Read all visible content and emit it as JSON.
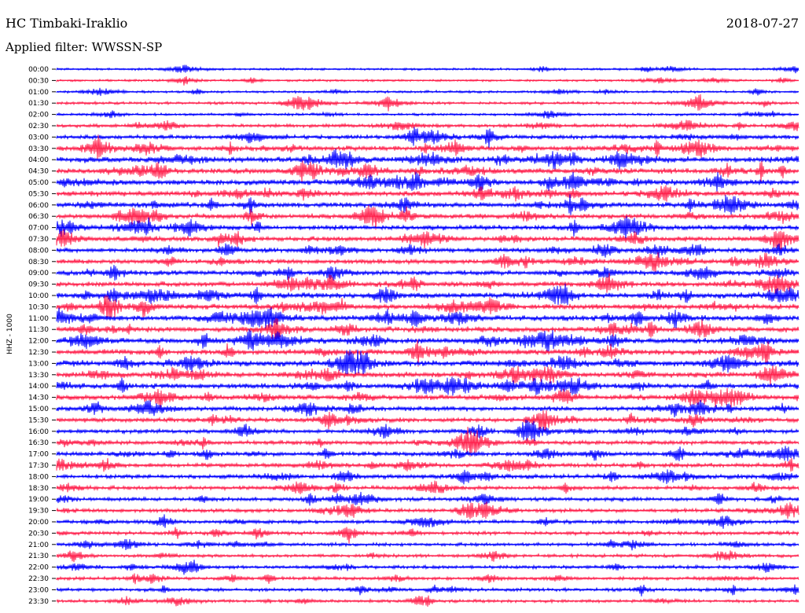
{
  "header": {
    "station": "HC Timbaki-Iraklio",
    "date": "2018-07-27",
    "filter": "Applied filter: WWSSN-SP"
  },
  "chart_data": {
    "type": "line",
    "title": "HC Timbaki-Iraklio",
    "ylabel": "HHZ - 1000",
    "row_interval_minutes": 30,
    "row_labels": [
      "00:00",
      "00:30",
      "01:00",
      "01:30",
      "02:00",
      "02:30",
      "03:00",
      "03:30",
      "04:00",
      "04:30",
      "05:00",
      "05:30",
      "06:00",
      "06:30",
      "07:00",
      "07:30",
      "08:00",
      "08:30",
      "09:00",
      "09:30",
      "10:00",
      "10:30",
      "11:00",
      "11:30",
      "12:00",
      "12:30",
      "13:00",
      "13:30",
      "14:00",
      "14:30",
      "15:00",
      "15:30",
      "16:00",
      "16:30",
      "17:00",
      "17:30",
      "18:00",
      "18:30",
      "19:00",
      "19:30",
      "20:00",
      "20:30",
      "21:00",
      "21:30",
      "22:00",
      "22:30",
      "23:00",
      "23:30"
    ],
    "row_colors": [
      "#0000ff",
      "#ff1f4b"
    ],
    "activity_level": [
      0.15,
      0.15,
      0.2,
      0.25,
      0.2,
      0.4,
      0.5,
      0.7,
      0.8,
      0.75,
      0.75,
      0.7,
      0.7,
      0.65,
      0.65,
      0.65,
      0.6,
      0.6,
      0.6,
      0.65,
      0.75,
      0.7,
      0.75,
      0.7,
      0.75,
      0.75,
      0.8,
      0.75,
      0.7,
      0.7,
      0.6,
      0.55,
      0.5,
      0.5,
      0.55,
      0.5,
      0.55,
      0.45,
      0.45,
      0.45,
      0.4,
      0.4,
      0.35,
      0.35,
      0.35,
      0.35,
      0.35,
      0.3
    ]
  }
}
